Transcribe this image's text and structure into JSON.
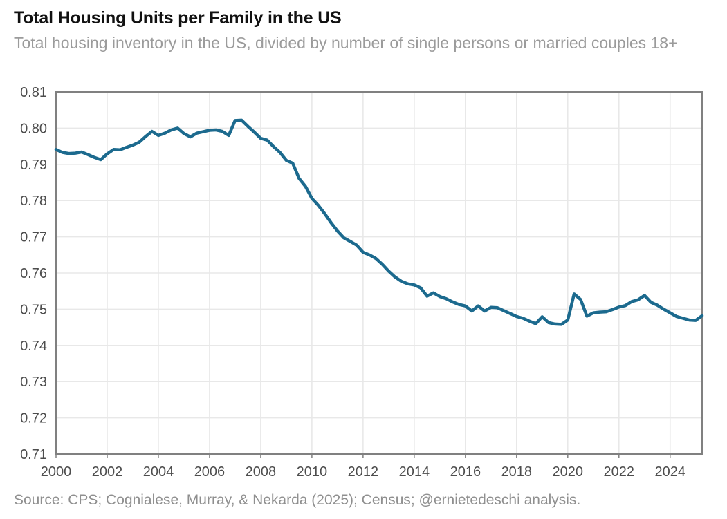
{
  "header": {
    "title": "Total Housing Units per Family in the US",
    "subtitle": "Total housing inventory in the US, divided by number of single persons or married couples 18+"
  },
  "source": "Source: CPS; Cognialese, Murray, & Nekarda (2025); Census; @ernietedeschi analysis.",
  "chart_data": {
    "type": "line",
    "title": "Total Housing Units per Family in the US",
    "subtitle": "Total housing inventory in the US, divided by number of single persons or married couples 18+",
    "series_name": "Total housing units per family",
    "xlabel": "",
    "ylabel": "",
    "xlim": [
      2000,
      2025.25
    ],
    "ylim": [
      0.71,
      0.81
    ],
    "grid": true,
    "legend_position": "none",
    "xticks": [
      2000,
      2002,
      2004,
      2006,
      2008,
      2010,
      2012,
      2014,
      2016,
      2018,
      2020,
      2022,
      2024
    ],
    "xtick_labels": [
      "2000",
      "2002",
      "2004",
      "2006",
      "2008",
      "2010",
      "2012",
      "2014",
      "2016",
      "2018",
      "2020",
      "2022",
      "2024"
    ],
    "yticks": [
      0.71,
      0.72,
      0.73,
      0.74,
      0.75,
      0.76,
      0.77,
      0.78,
      0.79,
      0.8,
      0.81
    ],
    "ytick_labels": [
      "0.71",
      "0.72",
      "0.73",
      "0.74",
      "0.75",
      "0.76",
      "0.77",
      "0.78",
      "0.79",
      "0.80",
      "0.81"
    ],
    "x": [
      2000.0,
      2000.25,
      2000.5,
      2000.75,
      2001.0,
      2001.25,
      2001.5,
      2001.75,
      2002.0,
      2002.25,
      2002.5,
      2002.75,
      2003.0,
      2003.25,
      2003.5,
      2003.75,
      2004.0,
      2004.25,
      2004.5,
      2004.75,
      2005.0,
      2005.25,
      2005.5,
      2005.75,
      2006.0,
      2006.25,
      2006.5,
      2006.75,
      2007.0,
      2007.25,
      2007.5,
      2007.75,
      2008.0,
      2008.25,
      2008.5,
      2008.75,
      2009.0,
      2009.25,
      2009.5,
      2009.75,
      2010.0,
      2010.25,
      2010.5,
      2010.75,
      2011.0,
      2011.25,
      2011.5,
      2011.75,
      2012.0,
      2012.25,
      2012.5,
      2012.75,
      2013.0,
      2013.25,
      2013.5,
      2013.75,
      2014.0,
      2014.25,
      2014.5,
      2014.75,
      2015.0,
      2015.25,
      2015.5,
      2015.75,
      2016.0,
      2016.25,
      2016.5,
      2016.75,
      2017.0,
      2017.25,
      2017.5,
      2017.75,
      2018.0,
      2018.25,
      2018.5,
      2018.75,
      2019.0,
      2019.25,
      2019.5,
      2019.75,
      2020.0,
      2020.25,
      2020.5,
      2020.75,
      2021.0,
      2021.25,
      2021.5,
      2021.75,
      2022.0,
      2022.25,
      2022.5,
      2022.75,
      2023.0,
      2023.25,
      2023.5,
      2023.75,
      2024.0,
      2024.25,
      2024.5,
      2024.75,
      2025.0,
      2025.25
    ],
    "values": [
      0.7941,
      0.7933,
      0.793,
      0.7931,
      0.7934,
      0.7927,
      0.7919,
      0.7913,
      0.7929,
      0.7941,
      0.794,
      0.7947,
      0.7953,
      0.7961,
      0.7977,
      0.7991,
      0.798,
      0.7986,
      0.7995,
      0.8,
      0.7985,
      0.7976,
      0.7986,
      0.799,
      0.7994,
      0.7995,
      0.7991,
      0.798,
      0.8021,
      0.8022,
      0.8005,
      0.7989,
      0.7972,
      0.7967,
      0.7949,
      0.7933,
      0.7911,
      0.7903,
      0.7861,
      0.7839,
      0.7806,
      0.7787,
      0.7764,
      0.7739,
      0.7716,
      0.7697,
      0.7687,
      0.7677,
      0.7657,
      0.765,
      0.764,
      0.7624,
      0.7605,
      0.7589,
      0.7577,
      0.757,
      0.7567,
      0.7559,
      0.7536,
      0.7545,
      0.7535,
      0.7529,
      0.752,
      0.7513,
      0.7509,
      0.7495,
      0.7509,
      0.7495,
      0.7505,
      0.7504,
      0.7496,
      0.7488,
      0.748,
      0.7475,
      0.7467,
      0.746,
      0.7479,
      0.7463,
      0.7459,
      0.7458,
      0.747,
      0.7542,
      0.7527,
      0.7481,
      0.749,
      0.7492,
      0.7493,
      0.7499,
      0.7506,
      0.751,
      0.7521,
      0.7526,
      0.7538,
      0.7519,
      0.7511,
      0.75,
      0.749,
      0.748,
      0.7475,
      0.747,
      0.7469,
      0.7482
    ],
    "colors": {
      "line": "#1c6a8e",
      "grid": "#e8e8e8",
      "plot_border": "#808080",
      "tick_label": "#4d4d4d",
      "title": "#111111",
      "subtitle": "#9b9b9b",
      "source": "#8f8f8f",
      "background": "#ffffff"
    }
  }
}
